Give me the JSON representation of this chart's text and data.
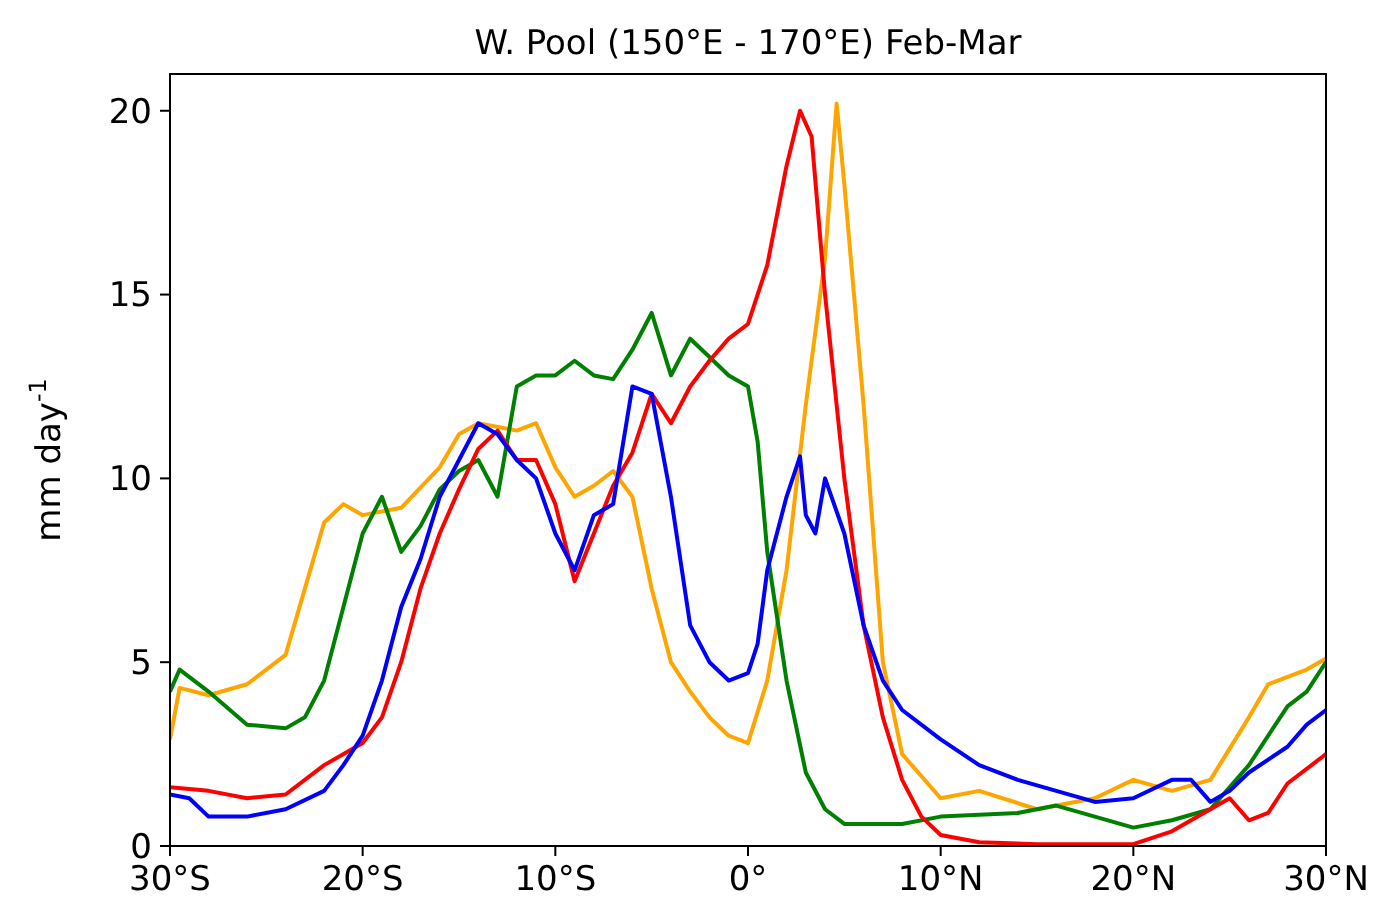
{
  "chart_data": {
    "type": "line",
    "title": "W. Pool (150°E - 170°E) Feb-Mar",
    "ylabel": "mm day$^{-1}$",
    "xlim": [
      -30,
      30
    ],
    "xticks": [
      {
        "value": -30,
        "label": "30°S"
      },
      {
        "value": -20,
        "label": "20°S"
      },
      {
        "value": -10,
        "label": "10°S"
      },
      {
        "value": 0,
        "label": "0°"
      },
      {
        "value": 10,
        "label": "10°N"
      },
      {
        "value": 20,
        "label": "20°N"
      },
      {
        "value": 30,
        "label": "30°N"
      }
    ],
    "ylim": [
      0,
      21
    ],
    "yticks": [
      0,
      5,
      10,
      15,
      20
    ],
    "grid": false,
    "marker": "none",
    "line_style": "solid",
    "series": [
      {
        "color": "#ffa500",
        "x": [
          -30,
          -29.5,
          -28,
          -26,
          -24,
          -23,
          -22,
          -21,
          -20,
          -18,
          -16,
          -15,
          -14,
          -12,
          -11,
          -10,
          -9,
          -8,
          -7,
          -6,
          -5,
          -4,
          -3,
          -2,
          -1,
          0,
          1,
          2,
          3,
          4,
          4.6,
          5,
          6,
          7,
          8,
          10,
          12,
          15,
          18,
          20,
          22,
          24,
          26,
          27,
          29,
          30
        ],
        "values": [
          2.9,
          4.3,
          4.1,
          4.4,
          5.2,
          7,
          8.8,
          9.3,
          9,
          9.2,
          10.3,
          11.2,
          11.5,
          11.3,
          11.5,
          10.3,
          9.5,
          9.8,
          10.2,
          9.5,
          7,
          5,
          4.2,
          3.5,
          3,
          2.8,
          4.5,
          7.5,
          12,
          16,
          20.2,
          18,
          12,
          5,
          2.5,
          1.3,
          1.5,
          1,
          1.3,
          1.8,
          1.5,
          1.8,
          3.5,
          4.4,
          4.8,
          5.1
        ]
      },
      {
        "color": "#008000",
        "x": [
          -30,
          -29.5,
          -28,
          -26,
          -24,
          -23,
          -22,
          -21,
          -20,
          -19,
          -18,
          -17,
          -16,
          -15,
          -14,
          -13,
          -12,
          -11,
          -10,
          -9,
          -8,
          -7,
          -6,
          -5,
          -4,
          -3,
          -2,
          -1,
          0,
          0.5,
          1,
          2,
          3,
          4,
          5,
          8,
          10,
          14,
          16,
          20,
          22,
          24,
          26,
          28,
          29,
          30
        ],
        "values": [
          4.2,
          4.8,
          4.2,
          3.3,
          3.2,
          3.5,
          4.5,
          6.5,
          8.5,
          9.5,
          8,
          8.7,
          9.7,
          10.2,
          10.5,
          9.5,
          12.5,
          12.8,
          12.8,
          13.2,
          12.8,
          12.7,
          13.5,
          14.5,
          12.8,
          13.8,
          13.3,
          12.8,
          12.5,
          11,
          8,
          4.5,
          2,
          1,
          0.6,
          0.6,
          0.8,
          0.9,
          1.1,
          0.5,
          0.7,
          1,
          2.2,
          3.8,
          4.2,
          5
        ]
      },
      {
        "color": "#ff0000",
        "x": [
          -30,
          -28,
          -26,
          -24,
          -22,
          -20,
          -19,
          -18,
          -17,
          -16,
          -15,
          -14,
          -13,
          -12,
          -11,
          -10,
          -9,
          -8,
          -7,
          -6,
          -5,
          -4,
          -3,
          -2,
          -1,
          0,
          1,
          2,
          2.7,
          3.3,
          4,
          5,
          6,
          7,
          8,
          9,
          10,
          12,
          15,
          20,
          22,
          24,
          25,
          26,
          27,
          28,
          30
        ],
        "values": [
          1.6,
          1.5,
          1.3,
          1.4,
          2.2,
          2.8,
          3.5,
          5,
          7,
          8.5,
          9.7,
          10.8,
          11.3,
          10.5,
          10.5,
          9.3,
          7.2,
          8.5,
          9.8,
          10.7,
          12.3,
          11.5,
          12.5,
          13.2,
          13.8,
          14.2,
          15.8,
          18.5,
          20,
          19.3,
          15,
          10,
          6,
          3.5,
          1.8,
          0.8,
          0.3,
          0.1,
          0.05,
          0.05,
          0.4,
          1,
          1.3,
          0.7,
          0.9,
          1.7,
          2.5
        ]
      },
      {
        "color": "#0000ff",
        "x": [
          -30,
          -29,
          -28,
          -26,
          -24,
          -22,
          -21,
          -20,
          -19,
          -18,
          -17,
          -16,
          -15,
          -14,
          -13,
          -12,
          -11,
          -10,
          -9,
          -8,
          -7,
          -6,
          -5,
          -4,
          -3,
          -2,
          -1,
          0,
          0.5,
          1,
          2,
          2.7,
          3,
          3.5,
          4,
          5,
          6,
          7,
          8,
          10,
          12,
          14,
          16,
          18,
          20,
          22,
          23,
          24,
          25,
          26,
          28,
          29,
          30
        ],
        "values": [
          1.4,
          1.3,
          0.8,
          0.8,
          1,
          1.5,
          2.2,
          3,
          4.5,
          6.5,
          7.8,
          9.5,
          10.5,
          11.5,
          11.2,
          10.5,
          10,
          8.5,
          7.5,
          9,
          9.3,
          12.5,
          12.3,
          9.5,
          6,
          5,
          4.5,
          4.7,
          5.5,
          7.5,
          9.5,
          10.6,
          9,
          8.5,
          10,
          8.5,
          6,
          4.5,
          3.7,
          2.9,
          2.2,
          1.8,
          1.5,
          1.2,
          1.3,
          1.8,
          1.8,
          1.2,
          1.5,
          2,
          2.7,
          3.3,
          3.7
        ]
      }
    ]
  }
}
